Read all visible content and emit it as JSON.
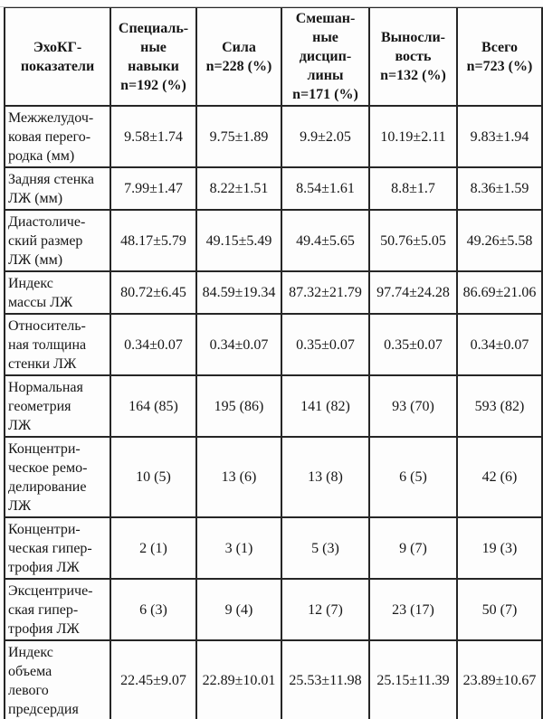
{
  "colors": {
    "border": "#262626",
    "text": "#161616",
    "background": "#fdfdfd"
  },
  "table": {
    "columns": [
      {
        "label": "ЭхоКГ-\nпоказатели"
      },
      {
        "label": "Специаль-\nные\nнавыки\nn=192 (%)"
      },
      {
        "label": "Сила\nn=228 (%)"
      },
      {
        "label": "Смешан-\nные\nдисцип-\nлины\nn=171 (%)"
      },
      {
        "label": "Выносли-\nвость\nn=132 (%)"
      },
      {
        "label": "Всего\nn=723 (%)"
      }
    ],
    "rows": [
      {
        "label": "Межжелудоч-\nковая перего-\nродка (мм)",
        "values": [
          "9.58±1.74",
          "9.75±1.89",
          "9.9±2.05",
          "10.19±2.11",
          "9.83±1.94"
        ]
      },
      {
        "label": "Задняя стенка\nЛЖ (мм)",
        "values": [
          "7.99±1.47",
          "8.22±1.51",
          "8.54±1.61",
          "8.8±1.7",
          "8.36±1.59"
        ]
      },
      {
        "label": "Диастоличе-\nский размер\nЛЖ (мм)",
        "values": [
          "48.17±5.79",
          "49.15±5.49",
          "49.4±5.65",
          "50.76±5.05",
          "49.26±5.58"
        ]
      },
      {
        "label": "Индекс\nмассы ЛЖ",
        "values": [
          "80.72±6.45",
          "84.59±19.34",
          "87.32±21.79",
          "97.74±24.28",
          "86.69±21.06"
        ]
      },
      {
        "label": "Относитель-\nная толщина\nстенки ЛЖ",
        "values": [
          "0.34±0.07",
          "0.34±0.07",
          "0.35±0.07",
          "0.35±0.07",
          "0.34±0.07"
        ]
      },
      {
        "label": "Нормальная\nгеометрия\nЛЖ",
        "values": [
          "164 (85)",
          "195 (86)",
          "141 (82)",
          "93 (70)",
          "593 (82)"
        ]
      },
      {
        "label": "Концентри-\nческое ремо-\nделирование\nЛЖ",
        "values": [
          "10 (5)",
          "13 (6)",
          "13 (8)",
          "6 (5)",
          "42 (6)"
        ]
      },
      {
        "label": "Концентри-\nческая гипер-\nтрофия ЛЖ",
        "values": [
          "2 (1)",
          "3 (1)",
          "5 (3)",
          "9 (7)",
          "19 (3)"
        ]
      },
      {
        "label": "Эксцентриче-\nская гипер-\nтрофия ЛЖ",
        "values": [
          "6 (3)",
          "9 (4)",
          "12 (7)",
          "23 (17)",
          "50 (7)"
        ]
      },
      {
        "label": "Индекс\nобъема\nлевого\nпредсердия",
        "values": [
          "22.45±9.07",
          "22.89±10.01",
          "25.53±11.98",
          "25.15±11.39",
          "23.89±10.67"
        ]
      }
    ]
  }
}
